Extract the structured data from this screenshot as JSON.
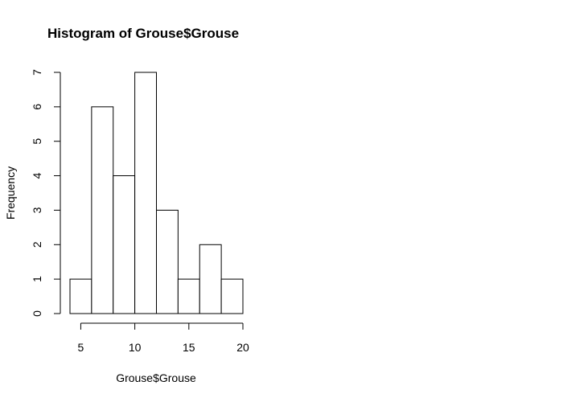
{
  "chart_data": {
    "type": "bar",
    "title": "Histogram of Grouse$Grouse",
    "xlabel": "Grouse$Grouse",
    "ylabel": "Frequency",
    "bins": [
      {
        "start": 4,
        "end": 6,
        "count": 1
      },
      {
        "start": 6,
        "end": 8,
        "count": 6
      },
      {
        "start": 8,
        "end": 10,
        "count": 4
      },
      {
        "start": 10,
        "end": 12,
        "count": 7
      },
      {
        "start": 12,
        "end": 14,
        "count": 3
      },
      {
        "start": 14,
        "end": 16,
        "count": 1
      },
      {
        "start": 16,
        "end": 18,
        "count": 2
      },
      {
        "start": 18,
        "end": 20,
        "count": 1
      }
    ],
    "xlim": [
      4,
      20
    ],
    "ylim": [
      0,
      7
    ],
    "x_ticks": [
      5,
      10,
      15,
      20
    ],
    "y_ticks": [
      0,
      1,
      2,
      3,
      4,
      5,
      6,
      7
    ],
    "grid": false,
    "colors": {
      "bar_fill": "#ffffff",
      "bar_stroke": "#000000"
    }
  }
}
